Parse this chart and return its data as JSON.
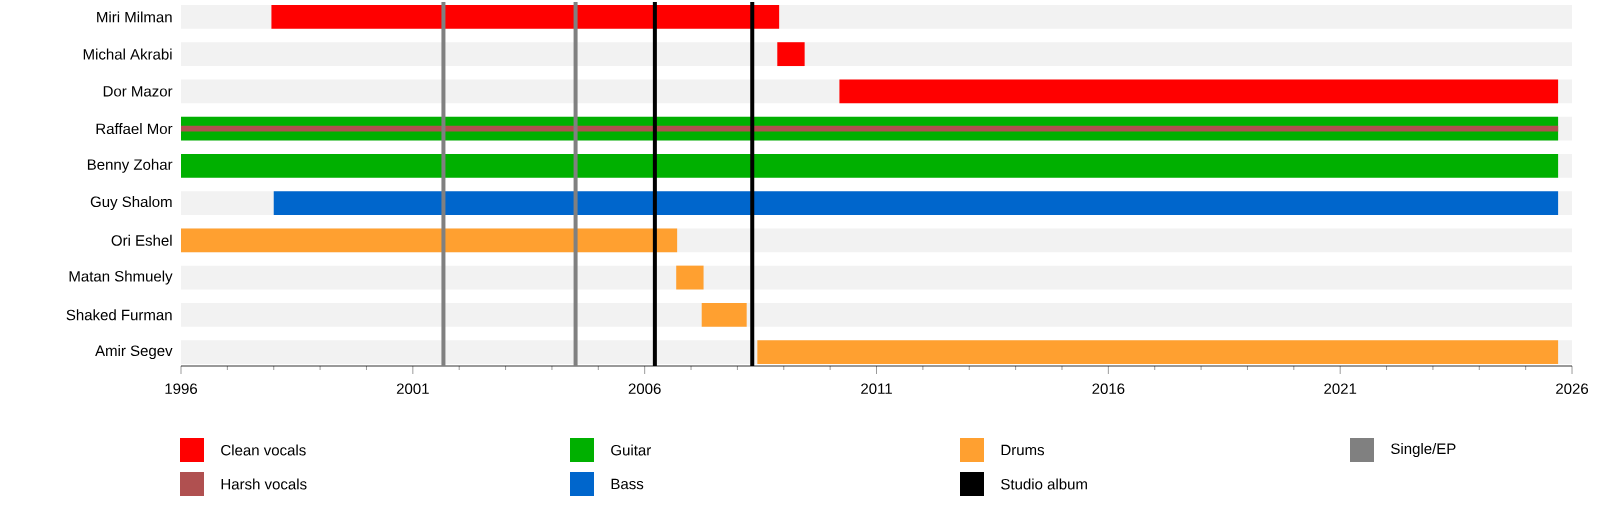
{
  "chart_data": {
    "type": "bar",
    "orientation": "horizontal",
    "categories": [
      "Miri Milman",
      "Michal Akrabi",
      "Dor Mazor",
      "Raffael Mor",
      "Benny Zohar",
      "Guy Shalom",
      "Ori Eshel",
      "Matan Shmuely",
      "Shaked Furman",
      "Amir Segev"
    ],
    "series": [
      {
        "name": "Clean vocals",
        "color": "#ff0000",
        "base": [
          1997.95,
          2008.86,
          2010.2,
          null,
          null,
          null,
          null,
          null,
          null,
          null
        ],
        "values": [
          10.95,
          0.59,
          15.5,
          null,
          null,
          null,
          null,
          null,
          null,
          null
        ]
      },
      {
        "name": "Harsh vocals",
        "color": "#b05050",
        "base": [
          null,
          null,
          null,
          1996,
          null,
          null,
          null,
          null,
          null,
          null
        ],
        "values": [
          null,
          null,
          null,
          29.7,
          null,
          null,
          null,
          null,
          null,
          null
        ]
      },
      {
        "name": "Guitar",
        "color": "#00b000",
        "base": [
          null,
          null,
          null,
          1996,
          1996,
          null,
          null,
          null,
          null,
          null
        ],
        "values": [
          null,
          null,
          null,
          29.7,
          29.7,
          null,
          null,
          null,
          null,
          null
        ]
      },
      {
        "name": "Bass",
        "color": "#0066cc",
        "base": [
          null,
          null,
          null,
          null,
          null,
          1998.0,
          null,
          null,
          null,
          null
        ],
        "values": [
          null,
          null,
          null,
          null,
          null,
          27.7,
          null,
          null,
          null,
          null
        ]
      },
      {
        "name": "Drums",
        "color": "#ffa030",
        "base": [
          null,
          null,
          null,
          null,
          null,
          null,
          1996,
          2006.68,
          2007.23,
          2008.43
        ],
        "values": [
          null,
          null,
          null,
          null,
          null,
          null,
          10.7,
          0.59,
          0.97,
          17.27
        ]
      }
    ],
    "ref_lines": [
      {
        "axis": "x",
        "value": 2006.22,
        "label": "Studio album",
        "color": "#000000"
      },
      {
        "axis": "x",
        "value": 2008.32,
        "color": "#000000"
      },
      {
        "axis": "x",
        "value": 2001.66,
        "label": "Single/EP",
        "color": "#808080"
      },
      {
        "axis": "x",
        "value": 2004.51,
        "color": "#808080"
      }
    ],
    "xlim": [
      1996,
      2026
    ],
    "xticks": [
      1996,
      2001,
      2006,
      2011,
      2016,
      2021,
      2026
    ],
    "legend": "bottom",
    "grid": false
  }
}
